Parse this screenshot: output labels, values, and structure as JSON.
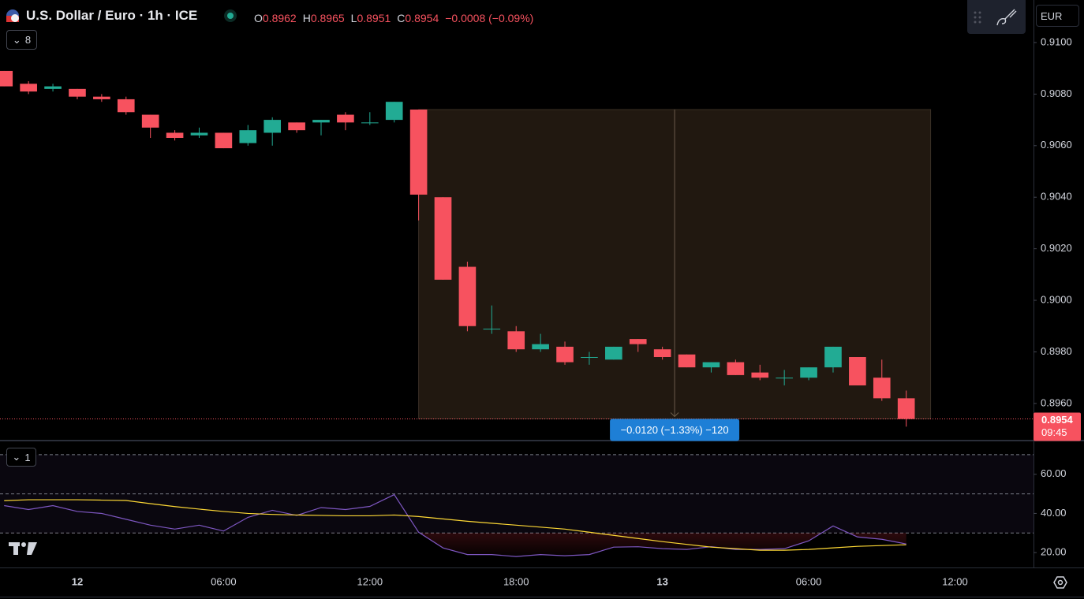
{
  "header": {
    "title": "U.S. Dollar / Euro · 1h · ICE",
    "ohlc": [
      {
        "key": "O",
        "value": "0.8962"
      },
      {
        "key": "H",
        "value": "0.8965"
      },
      {
        "key": "L",
        "value": "0.8951"
      },
      {
        "key": "C",
        "value": "0.8954"
      }
    ],
    "change": "−0.0008 (−0.09%)",
    "collapse_count": "8",
    "indicator_count": "1",
    "currency": "EUR",
    "countdown": "09:45"
  },
  "chart_data": [
    {
      "type": "candlestick",
      "up_color": "#22ab94",
      "down_color": "#f7525f",
      "x": [
        -3,
        -2,
        -1,
        0,
        1,
        2,
        3,
        4,
        5,
        6,
        7,
        8,
        9,
        10,
        11,
        12,
        13,
        14,
        15,
        16,
        17,
        18,
        19,
        20,
        21,
        22,
        23,
        24,
        25,
        26,
        27,
        28,
        29,
        30,
        31,
        32,
        33,
        34
      ],
      "open": [
        0.9089,
        0.9084,
        0.9082,
        0.9082,
        0.9079,
        0.9078,
        0.9072,
        0.9065,
        0.9064,
        0.9065,
        0.9061,
        0.9065,
        0.9069,
        0.9069,
        0.9072,
        0.9069,
        0.907,
        0.9074,
        0.904,
        0.9013,
        0.8989,
        0.8988,
        0.8981,
        0.8982,
        0.8978,
        0.8977,
        0.8985,
        0.8981,
        0.8979,
        0.8974,
        0.8976,
        0.8972,
        0.897,
        0.897,
        0.8974,
        0.8978,
        0.897,
        0.8962
      ],
      "high": [
        0.9089,
        0.9085,
        0.9084,
        0.9082,
        0.908,
        0.9079,
        0.9072,
        0.9066,
        0.9067,
        0.9065,
        0.9068,
        0.9071,
        0.9069,
        0.907,
        0.9073,
        0.9073,
        0.9077,
        0.9074,
        0.904,
        0.9015,
        0.8998,
        0.899,
        0.8987,
        0.8984,
        0.898,
        0.8982,
        0.8985,
        0.8982,
        0.8979,
        0.8976,
        0.8977,
        0.8975,
        0.8973,
        0.8974,
        0.8982,
        0.8978,
        0.8977,
        0.8965
      ],
      "low": [
        0.9083,
        0.908,
        0.9081,
        0.9078,
        0.9077,
        0.9072,
        0.9063,
        0.9062,
        0.9063,
        0.9059,
        0.906,
        0.906,
        0.9065,
        0.9064,
        0.9066,
        0.9068,
        0.9069,
        0.9031,
        0.9008,
        0.8988,
        0.8987,
        0.898,
        0.898,
        0.8975,
        0.8975,
        0.8977,
        0.898,
        0.8977,
        0.8974,
        0.8972,
        0.8971,
        0.8969,
        0.8967,
        0.8969,
        0.8972,
        0.8967,
        0.8961,
        0.8951
      ],
      "close": [
        0.9083,
        0.9081,
        0.9083,
        0.9079,
        0.9078,
        0.9073,
        0.9067,
        0.9063,
        0.9065,
        0.9059,
        0.9066,
        0.907,
        0.9066,
        0.907,
        0.9069,
        0.9069,
        0.9077,
        0.9041,
        0.9008,
        0.899,
        0.8989,
        0.8981,
        0.8983,
        0.8976,
        0.8978,
        0.8982,
        0.8983,
        0.8978,
        0.8974,
        0.8976,
        0.8971,
        0.897,
        0.897,
        0.8974,
        0.8982,
        0.8967,
        0.8962,
        0.8954
      ],
      "xlim": [
        -3.17,
        39.22
      ],
      "ylim": [
        0.89459,
        0.91165
      ],
      "xticks": [
        {
          "value": 0,
          "label": "12"
        },
        {
          "value": 6,
          "label": "06:00"
        },
        {
          "value": 12,
          "label": "12:00"
        },
        {
          "value": 18,
          "label": "18:00"
        },
        {
          "value": 24,
          "label": "13"
        },
        {
          "value": 30,
          "label": "06:00"
        },
        {
          "value": 36,
          "label": "12:00"
        }
      ],
      "yticks": [
        {
          "value": 0.91,
          "label": "0.9100"
        },
        {
          "value": 0.908,
          "label": "0.9080"
        },
        {
          "value": 0.906,
          "label": "0.9060"
        },
        {
          "value": 0.904,
          "label": "0.9040"
        },
        {
          "value": 0.902,
          "label": "0.9020"
        },
        {
          "value": 0.9,
          "label": "0.9000"
        },
        {
          "value": 0.898,
          "label": "0.8980"
        },
        {
          "value": 0.896,
          "label": "0.8960"
        }
      ],
      "last_price": 0.8954,
      "measure": {
        "label": "−0.0120 (−1.33%) −120",
        "x_range": [
          14,
          35
        ],
        "y_range": [
          0.9074,
          0.8954
        ]
      }
    },
    {
      "type": "line",
      "x": [
        -3,
        -2,
        -1,
        0,
        1,
        2,
        3,
        4,
        5,
        6,
        7,
        8,
        9,
        10,
        11,
        12,
        13,
        14,
        15,
        16,
        17,
        18,
        19,
        20,
        21,
        22,
        23,
        24,
        25,
        26,
        27,
        28,
        29,
        30,
        31,
        32,
        33,
        34
      ],
      "series": [
        {
          "color": "#7e57c2",
          "values": [
            44,
            42,
            44,
            41,
            40,
            37,
            34,
            32,
            34,
            31,
            38,
            41.6,
            39,
            43,
            42,
            43.6,
            49.6,
            30.4,
            22.4,
            19,
            19,
            18,
            19,
            18.4,
            19,
            22.8,
            23,
            22,
            21.6,
            23,
            21.6,
            21.6,
            22,
            26,
            33.6,
            28,
            26.8,
            24.4
          ]
        },
        {
          "color": "#fdd835",
          "values": [
            46.5,
            47,
            47,
            47,
            46.8,
            46.6,
            45,
            43.5,
            42.2,
            41,
            40,
            39.5,
            39.2,
            39,
            38.8,
            38.8,
            39.2,
            38.4,
            37.2,
            36,
            35,
            34,
            33,
            32,
            30.4,
            28.8,
            27.2,
            25.6,
            24.2,
            22.8,
            22,
            21.2,
            21.2,
            21.6,
            22.4,
            23.2,
            23.6,
            24
          ]
        }
      ],
      "xlim": [
        -3.17,
        39.22
      ],
      "ylim": [
        12.4,
        76.4
      ],
      "yticks": [
        {
          "value": 60,
          "label": "60.00"
        },
        {
          "value": 40,
          "label": "40.00"
        },
        {
          "value": 20,
          "label": "20.00"
        }
      ],
      "levels": [
        70,
        50,
        30
      ]
    }
  ]
}
